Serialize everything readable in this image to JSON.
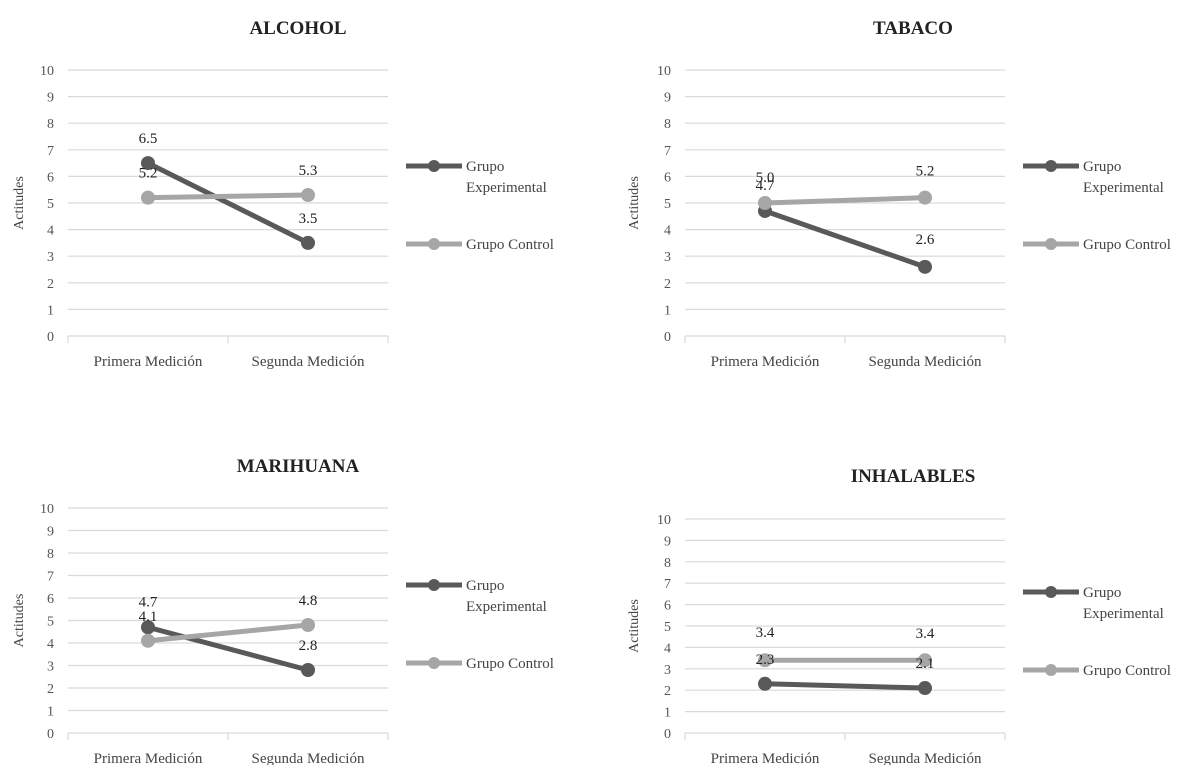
{
  "chart_data": [
    {
      "type": "line",
      "title": "ALCOHOL",
      "ylabel": "Actitudes",
      "xlabel": "",
      "categories": [
        "Primera Medición",
        "Segunda Medición"
      ],
      "ylim": [
        0,
        10
      ],
      "yticks": [
        "0",
        "1",
        "2",
        "3",
        "4",
        "5",
        "6",
        "7",
        "8",
        "9",
        "10"
      ],
      "grid": true,
      "legend_position": "right",
      "series": [
        {
          "name": "Grupo Experimental",
          "legend_lines": [
            "Grupo",
            "Experimental"
          ],
          "color": "#595959",
          "values": [
            6.5,
            3.5
          ],
          "labels": [
            "6.5",
            "3.5"
          ]
        },
        {
          "name": "Grupo Control",
          "legend_lines": [
            "Grupo Control"
          ],
          "color": "#a6a6a6",
          "values": [
            5.2,
            5.3
          ],
          "labels": [
            "5.2",
            "5.3"
          ]
        }
      ]
    },
    {
      "type": "line",
      "title": "TABACO",
      "ylabel": "Actitudes",
      "xlabel": "",
      "categories": [
        "Primera Medición",
        "Segunda Medición"
      ],
      "ylim": [
        0,
        10
      ],
      "yticks": [
        "0",
        "1",
        "2",
        "3",
        "4",
        "5",
        "6",
        "7",
        "8",
        "9",
        "10"
      ],
      "grid": true,
      "legend_position": "right",
      "series": [
        {
          "name": "Grupo Experimental",
          "legend_lines": [
            "Grupo",
            "Experimental"
          ],
          "color": "#595959",
          "values": [
            4.7,
            2.6
          ],
          "labels": [
            "4.7",
            "2.6"
          ]
        },
        {
          "name": "Grupo Control",
          "legend_lines": [
            "Grupo Control"
          ],
          "color": "#a6a6a6",
          "values": [
            5.0,
            5.2
          ],
          "labels": [
            "5.0",
            "5.2"
          ]
        }
      ]
    },
    {
      "type": "line",
      "title": "MARIHUANA",
      "ylabel": "Actitudes",
      "xlabel": "",
      "categories": [
        "Primera Medición",
        "Segunda Medición"
      ],
      "ylim": [
        0,
        10
      ],
      "yticks": [
        "0",
        "1",
        "2",
        "3",
        "4",
        "5",
        "6",
        "7",
        "8",
        "9",
        "10"
      ],
      "grid": true,
      "legend_position": "right",
      "series": [
        {
          "name": "Grupo Experimental",
          "legend_lines": [
            "Grupo",
            "Experimental"
          ],
          "color": "#595959",
          "values": [
            4.7,
            2.8
          ],
          "labels": [
            "4.7",
            "2.8"
          ]
        },
        {
          "name": "Grupo Control",
          "legend_lines": [
            "Grupo Control"
          ],
          "color": "#a6a6a6",
          "values": [
            4.1,
            4.8
          ],
          "labels": [
            "4.1",
            "4.8"
          ]
        }
      ]
    },
    {
      "type": "line",
      "title": "INHALABLES",
      "ylabel": "Actitudes",
      "xlabel": "",
      "categories": [
        "Primera Medición",
        "Segunda Medición"
      ],
      "ylim": [
        0,
        10
      ],
      "yticks": [
        "0",
        "1",
        "2",
        "3",
        "4",
        "5",
        "6",
        "7",
        "8",
        "9",
        "10"
      ],
      "grid": true,
      "legend_position": "right",
      "series": [
        {
          "name": "Grupo Experimental",
          "legend_lines": [
            "Grupo",
            "Experimental"
          ],
          "color": "#595959",
          "values": [
            2.3,
            2.1
          ],
          "labels": [
            "2.3",
            "2.1"
          ]
        },
        {
          "name": "Grupo Control",
          "legend_lines": [
            "Grupo Control"
          ],
          "color": "#a6a6a6",
          "values": [
            3.4,
            3.4
          ],
          "labels": [
            "3.4",
            "3.4"
          ]
        }
      ]
    }
  ]
}
